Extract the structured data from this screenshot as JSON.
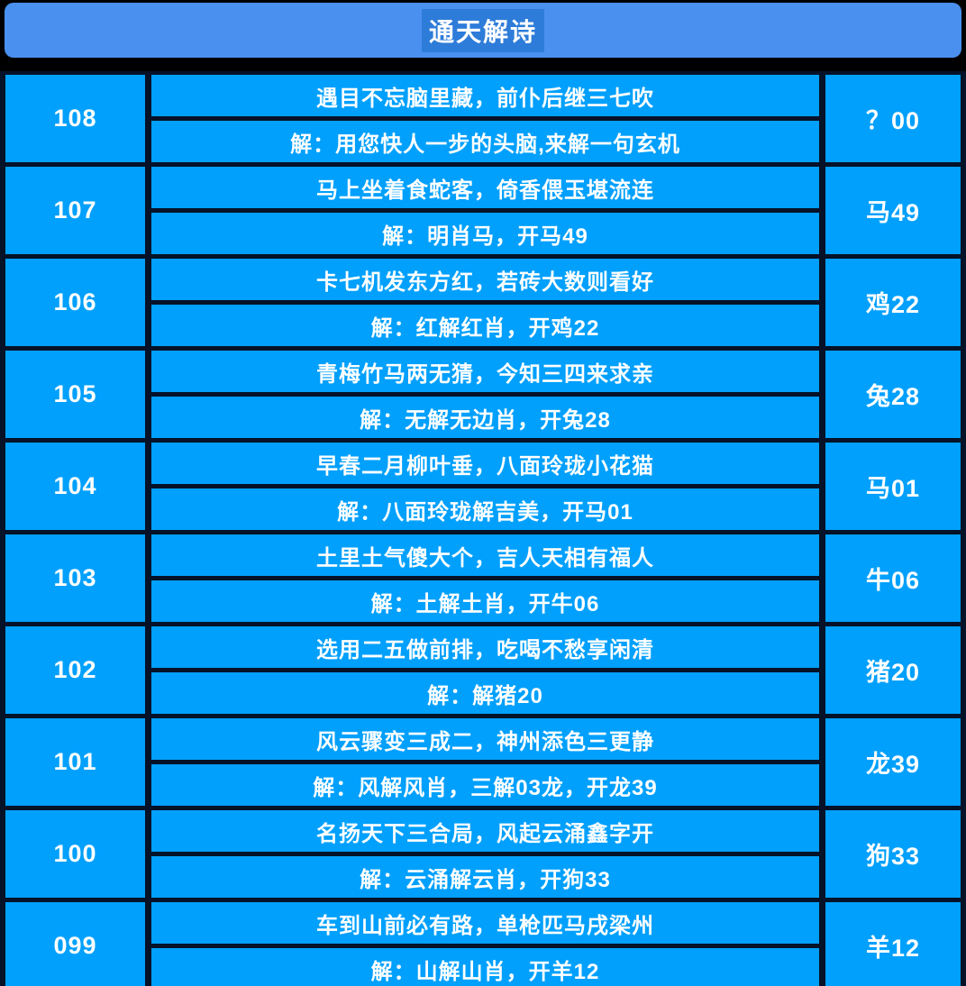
{
  "title": "通天解诗",
  "colors": {
    "header_bg": "#4a90ee",
    "title_highlight_bg": "#2e7cd9",
    "cell_bg": "#00a0fc",
    "grid_line": "#061228",
    "page_bg": "#000000",
    "text": "#ffffff"
  },
  "rows": [
    {
      "issue": "108",
      "poem": "遇目不忘脑里藏，前仆后继三七吹",
      "answer": "解：用您快人一步的头脑,来解一句玄机",
      "result": "？00"
    },
    {
      "issue": "107",
      "poem": "马上坐着食蛇客，倚香偎玉堪流连",
      "answer": "解：明肖马，开马49",
      "result": "马49"
    },
    {
      "issue": "106",
      "poem": "卡七机发东方红，若砖大数则看好",
      "answer": "解：红解红肖，开鸡22",
      "result": "鸡22"
    },
    {
      "issue": "105",
      "poem": "青梅竹马两无猜，今知三四来求亲",
      "answer": "解：无解无边肖，开兔28",
      "result": "兔28"
    },
    {
      "issue": "104",
      "poem": "早春二月柳叶垂，八面玲珑小花猫",
      "answer": "解：八面玲珑解吉美，开马01",
      "result": "马01"
    },
    {
      "issue": "103",
      "poem": "土里土气傻大个，吉人天相有福人",
      "answer": "解：土解土肖，开牛06",
      "result": "牛06"
    },
    {
      "issue": "102",
      "poem": "选用二五做前排，吃喝不愁享闲清",
      "answer": "解：解猪20",
      "result": "猪20"
    },
    {
      "issue": "101",
      "poem": "风云骤变三成二，神州添色三更静",
      "answer": "解：风解风肖，三解03龙，开龙39",
      "result": "龙39"
    },
    {
      "issue": "100",
      "poem": "名扬天下三合局，风起云涌鑫字开",
      "answer": "解：云涌解云肖，开狗33",
      "result": "狗33"
    },
    {
      "issue": "099",
      "poem": "车到山前必有路，单枪匹马戌梁州",
      "answer": "解：山解山肖，开羊12",
      "result": "羊12"
    }
  ]
}
